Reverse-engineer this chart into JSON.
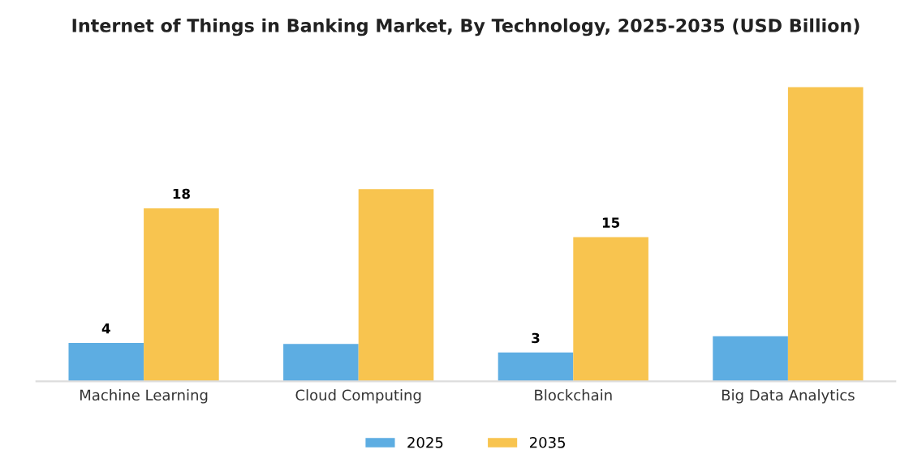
{
  "chart_data": {
    "type": "bar",
    "title": "Internet of Things in Banking Market, By Technology, 2025-2035 (USD Billion)",
    "categories": [
      "Machine Learning",
      "Cloud Computing",
      "Blockchain",
      "Big Data Analytics"
    ],
    "series": [
      {
        "name": "2025",
        "color": "#5dade2",
        "values": [
          4,
          3.9,
          3,
          4.7
        ],
        "value_labels": [
          "4",
          null,
          "3",
          null
        ]
      },
      {
        "name": "2035",
        "color": "#f8c44f",
        "values": [
          18,
          20,
          15,
          30.6
        ],
        "value_labels": [
          "18",
          null,
          "15",
          null
        ]
      }
    ],
    "legend": "bottom",
    "grid": false,
    "tick_labels": "x"
  }
}
